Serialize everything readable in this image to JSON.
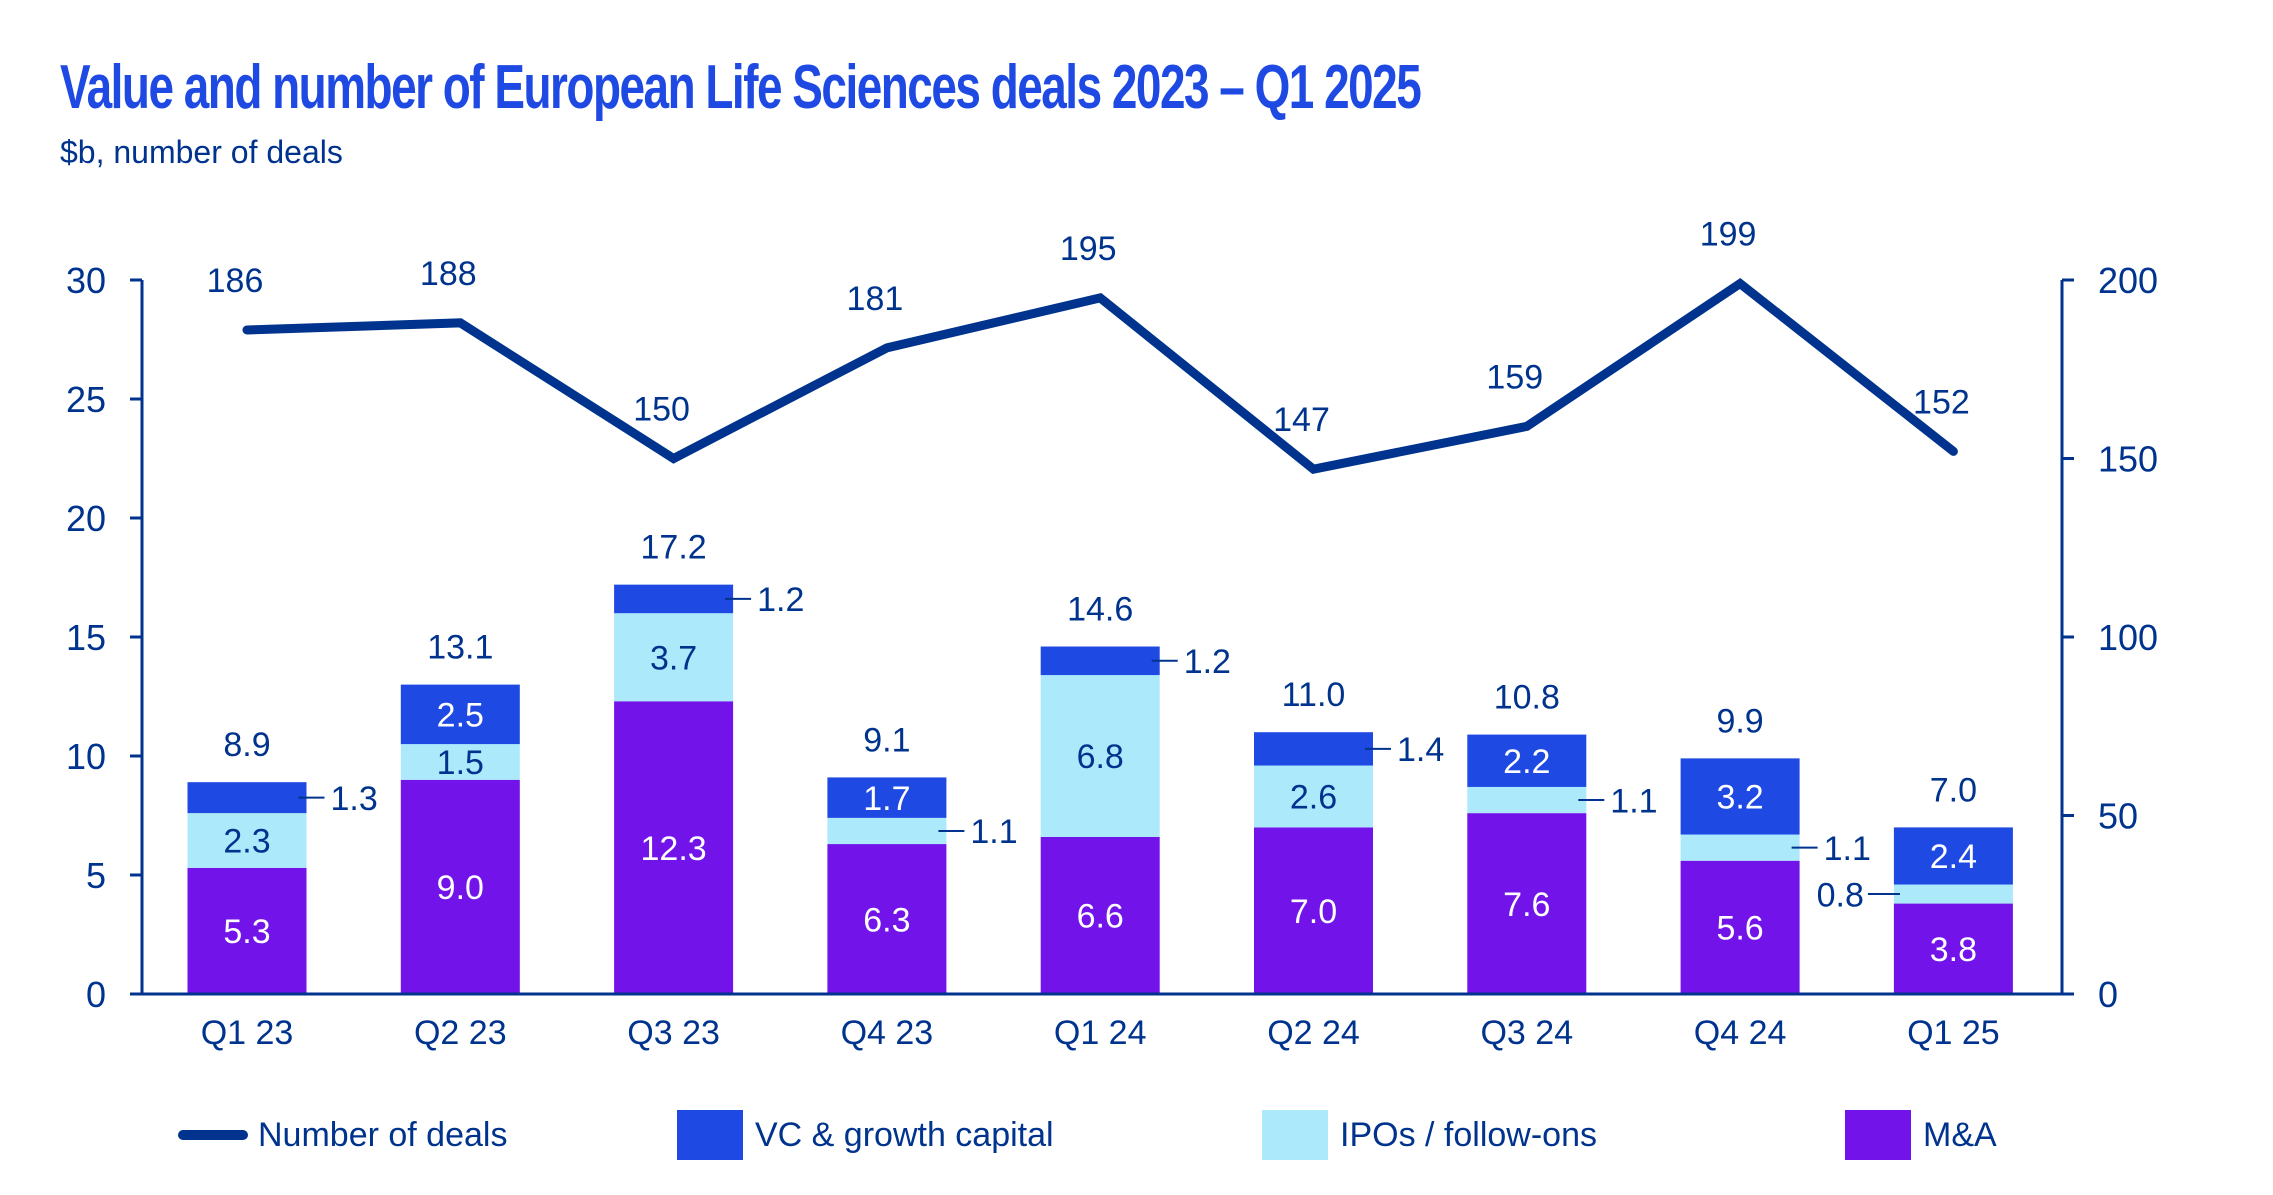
{
  "title": "Value and number of European Life Sciences deals 2023 – Q1 2025",
  "subtitle": "$b, number of deals",
  "colors": {
    "vc": "#1E49E2",
    "ipo": "#ABE9FB",
    "ma": "#7213EA",
    "line": "#00338D",
    "text": "#00338D",
    "title": "#1E49E2"
  },
  "legend": {
    "deals": "Number of deals",
    "vc": "VC & growth capital",
    "ipo": "IPOs / follow-ons",
    "ma": "M&A"
  },
  "chart_data": {
    "type": "bar",
    "stacked": true,
    "title": "Value and number of European Life Sciences deals 2023 – Q1 2025",
    "subtitle": "$b, number of deals",
    "categories": [
      "Q1 23",
      "Q2 23",
      "Q3 23",
      "Q4 23",
      "Q1 24",
      "Q2 24",
      "Q3 24",
      "Q4 24",
      "Q1 25"
    ],
    "series": [
      {
        "name": "M&A",
        "key": "ma",
        "values": [
          5.3,
          9.0,
          12.3,
          6.3,
          6.6,
          7.0,
          7.6,
          5.6,
          3.8
        ]
      },
      {
        "name": "IPOs / follow-ons",
        "key": "ipo",
        "values": [
          2.3,
          1.5,
          3.7,
          1.1,
          6.8,
          2.6,
          1.1,
          1.1,
          0.8
        ]
      },
      {
        "name": "VC & growth capital",
        "key": "vc",
        "values": [
          1.3,
          2.5,
          1.2,
          1.7,
          1.2,
          1.4,
          2.2,
          3.2,
          2.4
        ]
      }
    ],
    "totals": [
      8.9,
      13.1,
      17.2,
      9.1,
      14.6,
      11.0,
      10.8,
      9.9,
      7.0
    ],
    "line_series": {
      "name": "Number of deals",
      "axis": "right",
      "values": [
        186,
        188,
        150,
        181,
        195,
        147,
        159,
        199,
        152
      ]
    },
    "left_axis": {
      "label": "$b",
      "ylim": [
        0,
        30
      ],
      "ticks": [
        0,
        5,
        10,
        15,
        20,
        25,
        30
      ]
    },
    "right_axis": {
      "label": "number of deals",
      "ylim": [
        0,
        200
      ],
      "ticks": [
        0,
        50,
        100,
        150,
        200
      ]
    },
    "grid": false,
    "legend_position": "bottom",
    "outside_labels": [
      {
        "category": "Q1 23",
        "series": "vc",
        "side": "right"
      },
      {
        "category": "Q3 23",
        "series": "vc",
        "side": "right"
      },
      {
        "category": "Q4 23",
        "series": "ipo",
        "side": "right"
      },
      {
        "category": "Q1 24",
        "series": "vc",
        "side": "right"
      },
      {
        "category": "Q2 24",
        "series": "vc",
        "side": "right"
      },
      {
        "category": "Q3 24",
        "series": "ipo",
        "side": "right"
      },
      {
        "category": "Q4 24",
        "series": "ipo",
        "side": "right"
      },
      {
        "category": "Q1 25",
        "series": "ipo",
        "side": "left"
      }
    ]
  }
}
